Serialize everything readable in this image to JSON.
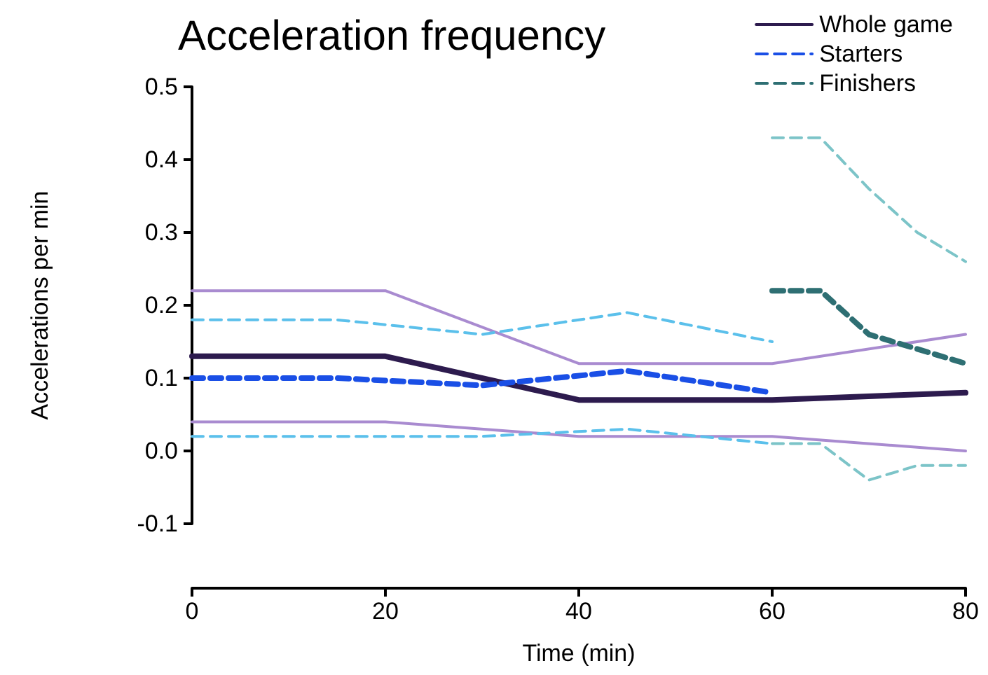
{
  "chart_data": {
    "type": "line",
    "title": "Acceleration frequency",
    "xlabel": "Time (min)",
    "ylabel": "Accelerations per min",
    "xlim": [
      0,
      80
    ],
    "xticks": [
      0,
      20,
      40,
      60,
      80
    ],
    "ylim": [
      -0.1,
      0.5
    ],
    "yticks": [
      -0.1,
      {
        "value": 0,
        "label": "0.0"
      },
      0.1,
      0.2,
      0.3,
      0.4,
      0.5
    ],
    "grid": false,
    "legend": "top right",
    "marker": "none",
    "series": [
      {
        "color": "#a98bd0",
        "line_style": "solid",
        "x": [
          0,
          20,
          40,
          60,
          80
        ],
        "values": [
          0.22,
          0.22,
          0.12,
          0.12,
          0.16
        ]
      },
      {
        "color": "#a98bd0",
        "line_style": "solid",
        "x": [
          0,
          20,
          40,
          60,
          80
        ],
        "values": [
          0.04,
          0.04,
          0.02,
          0.02,
          0.0
        ]
      },
      {
        "color": "#5bc0eb",
        "line_style": "dashed",
        "x": [
          0,
          15,
          30,
          45,
          60
        ],
        "values": [
          0.18,
          0.18,
          0.16,
          0.19,
          0.15
        ]
      },
      {
        "color": "#5bc0eb",
        "line_style": "dashed",
        "x": [
          0,
          15,
          30,
          45,
          60
        ],
        "values": [
          0.02,
          0.02,
          0.02,
          0.03,
          0.01
        ]
      },
      {
        "color": "#7cc4c8",
        "line_style": "dashed",
        "x": [
          60,
          65,
          70,
          75,
          80
        ],
        "values": [
          0.43,
          0.43,
          0.36,
          0.3,
          0.26
        ]
      },
      {
        "color": "#7cc4c8",
        "line_style": "dashed",
        "x": [
          60,
          65,
          70,
          75,
          80
        ],
        "values": [
          0.01,
          0.01,
          -0.04,
          -0.02,
          -0.02
        ]
      },
      {
        "name": "Whole game",
        "color": "#2d1b4e",
        "line_style": "solid",
        "x": [
          0,
          20,
          40,
          60,
          80
        ],
        "values": [
          0.13,
          0.13,
          0.07,
          0.07,
          0.08
        ]
      },
      {
        "name": "Starters",
        "color": "#1a4fe6",
        "line_style": "dashed",
        "x": [
          0,
          15,
          30,
          45,
          60
        ],
        "values": [
          0.1,
          0.1,
          0.09,
          0.11,
          0.08
        ]
      },
      {
        "name": "Finishers",
        "color": "#2e6f73",
        "line_style": "dashed",
        "x": [
          60,
          65,
          70,
          75,
          80
        ],
        "values": [
          0.22,
          0.22,
          0.16,
          0.14,
          0.12
        ]
      }
    ]
  }
}
